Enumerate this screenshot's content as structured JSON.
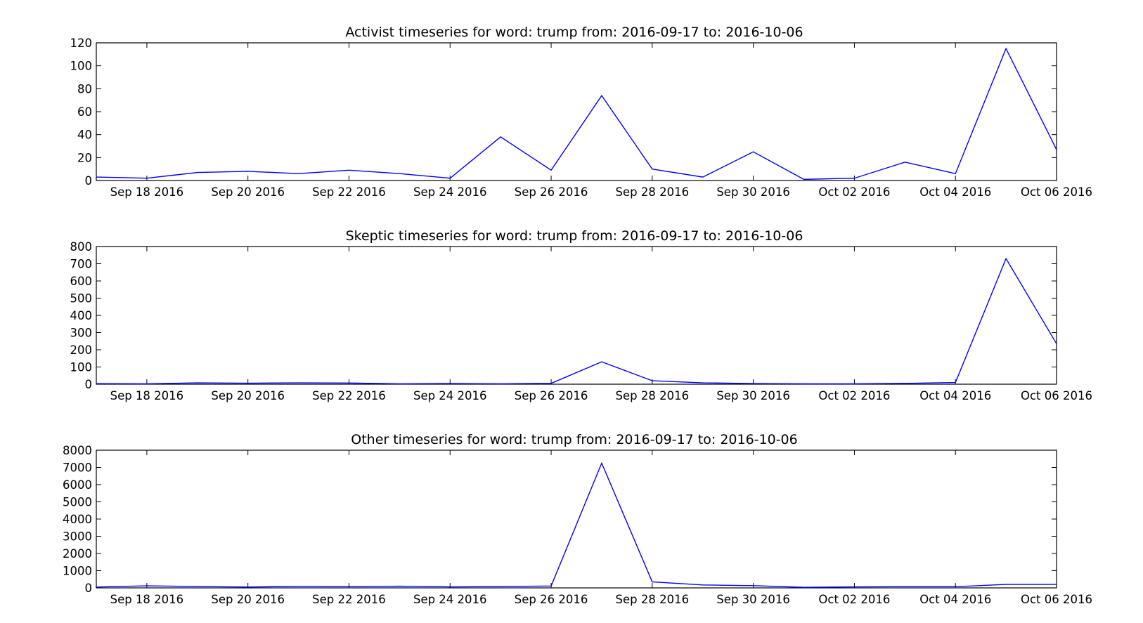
{
  "chart_data": [
    {
      "type": "line",
      "title": "Activist timeseries for word: trump from: 2016-09-17 to: 2016-10-06",
      "xlabel": "",
      "ylabel": "",
      "x": [
        "2016-09-17",
        "2016-09-18",
        "2016-09-19",
        "2016-09-20",
        "2016-09-21",
        "2016-09-22",
        "2016-09-23",
        "2016-09-24",
        "2016-09-25",
        "2016-09-26",
        "2016-09-27",
        "2016-09-28",
        "2016-09-29",
        "2016-09-30",
        "2016-10-01",
        "2016-10-02",
        "2016-10-03",
        "2016-10-04",
        "2016-10-05",
        "2016-10-06"
      ],
      "series": [
        {
          "values": [
            3,
            2,
            7,
            8,
            6,
            9,
            6,
            2,
            38,
            9,
            74,
            10,
            3,
            25,
            1,
            2,
            16,
            6,
            115,
            27
          ]
        }
      ],
      "ylim": [
        0,
        120
      ],
      "yticks": [
        0,
        20,
        40,
        60,
        80,
        100,
        120
      ],
      "xtick_dates": [
        "2016-09-18",
        "2016-09-20",
        "2016-09-22",
        "2016-09-24",
        "2016-09-26",
        "2016-09-28",
        "2016-09-30",
        "2016-10-02",
        "2016-10-04",
        "2016-10-06"
      ],
      "xtick_labels": [
        "Sep 18 2016",
        "Sep 20 2016",
        "Sep 22 2016",
        "Sep 24 2016",
        "Sep 26 2016",
        "Sep 28 2016",
        "Sep 30 2016",
        "Oct 02 2016",
        "Oct 04 2016",
        "Oct 06 2016"
      ],
      "line_color": "#0000ff",
      "grid": false
    },
    {
      "type": "line",
      "title": "Skeptic timeseries for word: trump from: 2016-09-17 to: 2016-10-06",
      "xlabel": "",
      "ylabel": "",
      "x": [
        "2016-09-17",
        "2016-09-18",
        "2016-09-19",
        "2016-09-20",
        "2016-09-21",
        "2016-09-22",
        "2016-09-23",
        "2016-09-24",
        "2016-09-25",
        "2016-09-26",
        "2016-09-27",
        "2016-09-28",
        "2016-09-29",
        "2016-09-30",
        "2016-10-01",
        "2016-10-02",
        "2016-10-03",
        "2016-10-04",
        "2016-10-05",
        "2016-10-06"
      ],
      "series": [
        {
          "values": [
            3,
            2,
            8,
            6,
            8,
            7,
            2,
            4,
            2,
            5,
            130,
            20,
            8,
            4,
            2,
            2,
            5,
            10,
            730,
            235
          ]
        }
      ],
      "ylim": [
        0,
        800
      ],
      "yticks": [
        0,
        100,
        200,
        300,
        400,
        500,
        600,
        700,
        800
      ],
      "xtick_dates": [
        "2016-09-18",
        "2016-09-20",
        "2016-09-22",
        "2016-09-24",
        "2016-09-26",
        "2016-09-28",
        "2016-09-30",
        "2016-10-02",
        "2016-10-04",
        "2016-10-06"
      ],
      "xtick_labels": [
        "Sep 18 2016",
        "Sep 20 2016",
        "Sep 22 2016",
        "Sep 24 2016",
        "Sep 26 2016",
        "Sep 28 2016",
        "Sep 30 2016",
        "Oct 02 2016",
        "Oct 04 2016",
        "Oct 06 2016"
      ],
      "line_color": "#0000ff",
      "grid": false
    },
    {
      "type": "line",
      "title": "Other timeseries for word: trump from: 2016-09-17 to: 2016-10-06",
      "xlabel": "",
      "ylabel": "",
      "x": [
        "2016-09-17",
        "2016-09-18",
        "2016-09-19",
        "2016-09-20",
        "2016-09-21",
        "2016-09-22",
        "2016-09-23",
        "2016-09-24",
        "2016-09-25",
        "2016-09-26",
        "2016-09-27",
        "2016-09-28",
        "2016-09-29",
        "2016-09-30",
        "2016-10-01",
        "2016-10-02",
        "2016-10-03",
        "2016-10-04",
        "2016-10-05",
        "2016-10-06"
      ],
      "series": [
        {
          "values": [
            50,
            120,
            80,
            50,
            90,
            70,
            100,
            60,
            80,
            110,
            7250,
            350,
            170,
            130,
            30,
            60,
            70,
            70,
            200,
            200
          ]
        }
      ],
      "ylim": [
        0,
        8000
      ],
      "yticks": [
        0,
        1000,
        2000,
        3000,
        4000,
        5000,
        6000,
        7000,
        8000
      ],
      "xtick_dates": [
        "2016-09-18",
        "2016-09-20",
        "2016-09-22",
        "2016-09-24",
        "2016-09-26",
        "2016-09-28",
        "2016-09-30",
        "2016-10-02",
        "2016-10-04",
        "2016-10-06"
      ],
      "xtick_labels": [
        "Sep 18 2016",
        "Sep 20 2016",
        "Sep 22 2016",
        "Sep 24 2016",
        "Sep 26 2016",
        "Sep 28 2016",
        "Sep 30 2016",
        "Oct 02 2016",
        "Oct 04 2016",
        "Oct 06 2016"
      ],
      "line_color": "#0000ff",
      "grid": false
    }
  ]
}
